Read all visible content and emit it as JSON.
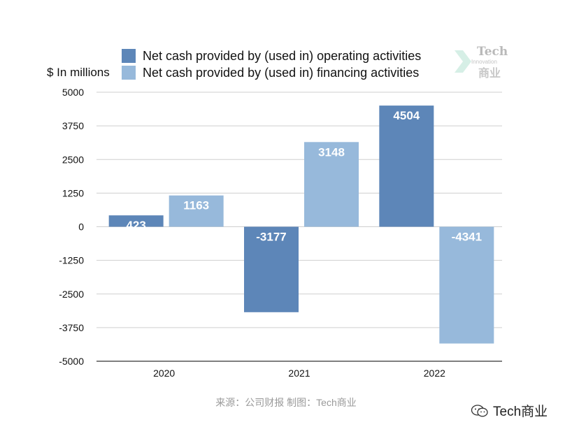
{
  "chart_data": {
    "type": "bar",
    "categories": [
      "2020",
      "2021",
      "2022"
    ],
    "series": [
      {
        "name": "Net cash provided by (used in) operating activities",
        "color": "#5d86b8",
        "values": [
          423,
          -3177,
          4504
        ]
      },
      {
        "name": "Net cash provided by (used in) financing activities",
        "color": "#97b9db",
        "values": [
          1163,
          3148,
          -4341
        ]
      }
    ],
    "ylabel": "$ In millions",
    "ylim": [
      -5000,
      5000
    ],
    "yticks": [
      "5000",
      "3750",
      "2500",
      "1250",
      "0",
      "-1250",
      "-2500",
      "-3750",
      "-5000"
    ],
    "grid": true,
    "legend_position": "top"
  },
  "source": "来源：公司财报 制图：Tech商业",
  "watermark": {
    "text": "Tech商业",
    "icon": "wechat-icon"
  },
  "logo": {
    "line1": "Tech",
    "line2": "Innovation",
    "line3": "商业",
    "accent": "#d6efe6"
  }
}
